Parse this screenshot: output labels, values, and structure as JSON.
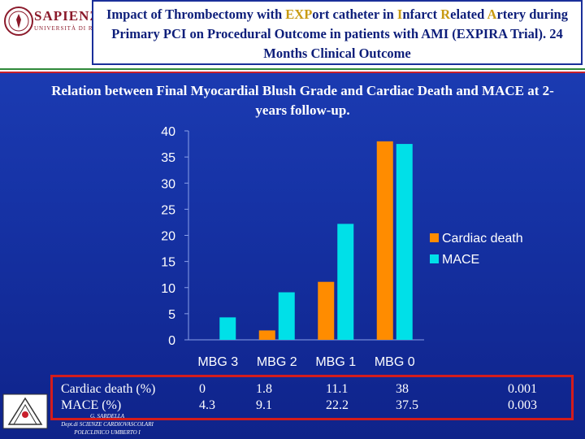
{
  "header": {
    "logo_name": "SAPIENZA",
    "logo_sub": "UNIVERSITÀ DI ROMA",
    "title_parts": [
      {
        "text": "Impact of Thrombectomy with ",
        "hl": false
      },
      {
        "text": "EXP",
        "hl": true
      },
      {
        "text": "ort catheter in ",
        "hl": false
      },
      {
        "text": "I",
        "hl": true
      },
      {
        "text": "nfarct ",
        "hl": false
      },
      {
        "text": "R",
        "hl": true
      },
      {
        "text": "elated ",
        "hl": false
      },
      {
        "text": "A",
        "hl": true
      },
      {
        "text": "rtery during Primary PCI on Procedural Outcome in patients with AMI (",
        "hl": false
      },
      {
        "text": "EXPIRA",
        "hl": false
      },
      {
        "text": " Trial). 24 Months Clinical Outcome",
        "hl": false
      }
    ]
  },
  "subtitle": "Relation between Final  Myocardial Blush Grade  and  Cardiac Death and MACE at 2-years follow-up.",
  "colors": {
    "cardiac_death": "#ff8c00",
    "mace": "#00e0e8",
    "axis_text": "#ffffff",
    "border": "#d41c1c"
  },
  "chart_data": {
    "type": "bar",
    "categories": [
      "MBG 3",
      "MBG 2",
      "MBG 1",
      "MBG 0"
    ],
    "series": [
      {
        "name": "Cardiac death",
        "values": [
          0,
          1.8,
          11.1,
          38
        ]
      },
      {
        "name": "MACE",
        "values": [
          4.3,
          9.1,
          22.2,
          37.5
        ]
      }
    ],
    "ylim": [
      0,
      40
    ],
    "yticks": [
      0,
      5,
      10,
      15,
      20,
      25,
      30,
      35,
      40
    ],
    "legend": "right",
    "grid": false
  },
  "table": {
    "rows": [
      {
        "label": "Cardiac death (%)",
        "values": [
          "0",
          "1.8",
          "11.1",
          "38"
        ],
        "p": "0.001"
      },
      {
        "label": "MACE (%)",
        "values": [
          "4.3",
          "9.1",
          "22.2",
          "37.5"
        ],
        "p": "0.003"
      }
    ]
  },
  "footer": {
    "line1": "G. SARDELLA",
    "line2": "Dept.di SCIENZE CARDIOVASCOLARI",
    "line3": "POLICLINICO UMBERTO I"
  }
}
